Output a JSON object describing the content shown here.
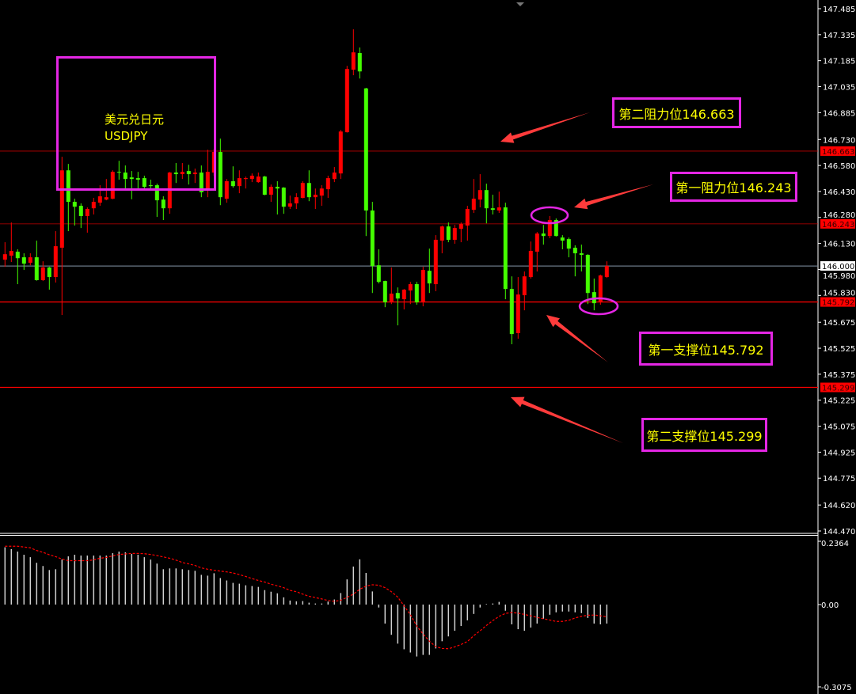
{
  "chart_data": [
    {
      "type": "candlestick",
      "title_lines": [
        "美元兑日元",
        "USDJPY"
      ],
      "ylim": [
        144.47,
        147.485
      ],
      "y_ticks": [
        "147.485",
        "147.335",
        "147.185",
        "147.035",
        "146.885",
        "146.730",
        "146.580",
        "146.430",
        "146.280",
        "146.130",
        "145.980",
        "145.830",
        "145.675",
        "145.525",
        "145.375",
        "145.225",
        "145.075",
        "144.925",
        "144.775",
        "144.620",
        "144.470"
      ],
      "up_color": "#ff0000",
      "down_color": "#44ff00",
      "candle_fields": [
        "open",
        "high",
        "low",
        "close"
      ],
      "candles": [
        [
          146.036,
          146.137,
          145.995,
          146.068
        ],
        [
          146.059,
          146.251,
          146.023,
          146.087
        ],
        [
          146.082,
          146.096,
          145.895,
          146.045
        ],
        [
          146.05,
          146.073,
          145.977,
          146.013
        ],
        [
          146.018,
          146.073,
          146.004,
          146.05
        ],
        [
          146.05,
          146.146,
          145.915,
          145.918
        ],
        [
          145.918,
          146.027,
          145.913,
          145.991
        ],
        [
          145.991,
          145.995,
          145.863,
          145.936
        ],
        [
          145.936,
          146.201,
          145.904,
          146.114
        ],
        [
          146.105,
          146.63,
          145.717,
          146.552
        ],
        [
          146.552,
          146.589,
          146.201,
          146.37
        ],
        [
          146.37,
          146.388,
          146.233,
          146.342
        ],
        [
          146.347,
          146.361,
          146.219,
          146.288
        ],
        [
          146.288,
          146.338,
          146.192,
          146.329
        ],
        [
          146.333,
          146.393,
          146.297,
          146.37
        ],
        [
          146.365,
          146.466,
          146.347,
          146.402
        ],
        [
          146.383,
          146.502,
          146.379,
          146.397
        ],
        [
          146.388,
          146.552,
          146.385,
          146.543
        ],
        [
          146.543,
          146.607,
          146.498,
          146.539
        ],
        [
          146.539,
          146.58,
          146.443,
          146.502
        ],
        [
          146.511,
          146.548,
          146.385,
          146.502
        ],
        [
          146.507,
          146.543,
          146.447,
          146.498
        ],
        [
          146.507,
          146.521,
          146.443,
          146.457
        ],
        [
          146.466,
          146.498,
          146.447,
          146.461
        ],
        [
          146.466,
          146.475,
          146.283,
          146.379
        ],
        [
          146.383,
          146.402,
          146.265,
          146.333
        ],
        [
          146.333,
          146.543,
          146.301,
          146.539
        ],
        [
          146.539,
          146.594,
          146.479,
          146.53
        ],
        [
          146.53,
          146.594,
          146.502,
          146.543
        ],
        [
          146.548,
          146.584,
          146.47,
          146.53
        ],
        [
          146.53,
          146.562,
          146.479,
          146.539
        ],
        [
          146.539,
          146.58,
          146.397,
          146.425
        ],
        [
          146.438,
          146.671,
          146.397,
          146.543
        ],
        [
          146.539,
          146.676,
          146.521,
          146.658
        ],
        [
          146.658,
          146.735,
          146.351,
          146.397
        ],
        [
          146.388,
          146.502,
          146.365,
          146.489
        ],
        [
          146.489,
          146.575,
          146.452,
          146.461
        ],
        [
          146.461,
          146.552,
          146.42,
          146.507
        ],
        [
          146.502,
          146.516,
          146.447,
          146.507
        ],
        [
          146.502,
          146.534,
          146.484,
          146.521
        ],
        [
          146.484,
          146.539,
          146.48,
          146.516
        ],
        [
          146.516,
          146.52,
          146.408,
          146.411
        ],
        [
          146.411,
          146.47,
          146.37,
          146.457
        ],
        [
          146.457,
          146.489,
          146.297,
          146.447
        ],
        [
          146.452,
          146.455,
          146.301,
          146.342
        ],
        [
          146.342,
          146.406,
          146.329,
          146.361
        ],
        [
          146.361,
          146.42,
          146.329,
          146.397
        ],
        [
          146.393,
          146.489,
          146.39,
          146.479
        ],
        [
          146.479,
          146.552,
          146.374,
          146.397
        ],
        [
          146.397,
          146.447,
          146.329,
          146.411
        ],
        [
          146.406,
          146.466,
          146.347,
          146.447
        ],
        [
          146.443,
          146.521,
          146.393,
          146.507
        ],
        [
          146.502,
          146.571,
          146.484,
          146.539
        ],
        [
          146.534,
          146.785,
          146.502,
          146.776
        ],
        [
          146.772,
          147.155,
          146.77,
          147.137
        ],
        [
          147.133,
          147.366,
          147.101,
          147.233
        ],
        [
          147.229,
          147.261,
          147.082,
          147.123
        ],
        [
          147.025,
          147.028,
          146.173,
          146.32
        ],
        [
          146.32,
          146.37,
          145.844,
          146.0
        ],
        [
          146.004,
          146.096,
          145.899,
          145.908
        ],
        [
          145.913,
          145.915,
          145.762,
          145.79
        ],
        [
          145.79,
          145.991,
          145.78,
          145.84
        ],
        [
          145.844,
          145.876,
          145.657,
          145.812
        ],
        [
          145.808,
          145.867,
          145.749,
          145.863
        ],
        [
          145.858,
          145.908,
          145.78,
          145.895
        ],
        [
          145.895,
          145.908,
          145.776,
          145.79
        ],
        [
          145.79,
          145.995,
          145.767,
          145.977
        ],
        [
          145.972,
          146.1,
          145.844,
          145.899
        ],
        [
          145.895,
          146.178,
          145.854,
          146.151
        ],
        [
          146.146,
          146.233,
          146.073,
          146.228
        ],
        [
          146.228,
          146.251,
          146.137,
          146.151
        ],
        [
          146.151,
          146.237,
          146.128,
          146.219
        ],
        [
          146.214,
          146.251,
          146.137,
          146.242
        ],
        [
          146.233,
          146.347,
          146.146,
          146.329
        ],
        [
          146.324,
          146.502,
          146.306,
          146.388
        ],
        [
          146.383,
          146.53,
          146.338,
          146.438
        ],
        [
          146.438,
          146.475,
          146.246,
          146.333
        ],
        [
          146.333,
          146.411,
          146.297,
          146.324
        ],
        [
          146.32,
          146.429,
          146.306,
          146.338
        ],
        [
          146.338,
          146.365,
          145.808,
          145.867
        ],
        [
          145.867,
          145.94,
          145.548,
          145.607
        ],
        [
          145.612,
          145.936,
          145.58,
          145.835
        ],
        [
          145.831,
          145.968,
          145.744,
          145.94
        ],
        [
          145.936,
          146.141,
          145.927,
          146.087
        ],
        [
          146.082,
          146.196,
          145.968,
          146.187
        ],
        [
          146.187,
          146.237,
          146.123,
          146.173
        ],
        [
          146.173,
          146.288,
          146.16,
          146.265
        ],
        [
          146.265,
          146.274,
          146.17,
          146.173
        ],
        [
          146.164,
          146.178,
          146.096,
          146.146
        ],
        [
          146.155,
          146.164,
          146.05,
          146.1
        ],
        [
          146.105,
          146.119,
          145.94,
          146.073
        ],
        [
          146.073,
          146.123,
          145.968,
          146.064
        ],
        [
          146.064,
          146.068,
          145.78,
          145.844
        ],
        [
          145.849,
          145.927,
          145.744,
          145.785
        ],
        [
          145.79,
          145.95,
          145.776,
          145.945
        ],
        [
          145.936,
          146.027,
          145.931,
          146.0
        ]
      ],
      "current_price": {
        "value": 146.0,
        "label": "146.000",
        "color": "#8899aa"
      },
      "levels": [
        {
          "value": 146.663,
          "label": "146.663",
          "annotation": "第二阻力位146.663",
          "color": "#ff0000"
        },
        {
          "value": 146.243,
          "label": "146.243",
          "annotation": "第一阻力位146.243",
          "color": "#ff0000"
        },
        {
          "value": 145.792,
          "label": "145.792",
          "annotation": "第一支撑位145.792",
          "color": "#ff0000"
        },
        {
          "value": 145.299,
          "label": "145.299",
          "annotation": "第二支撑位145.299",
          "color": "#ff0000"
        }
      ],
      "annotation_box_color": "#e426e4",
      "annotation_text_color": "#ffff00",
      "arrow_color": "#ff3b3b"
    },
    {
      "type": "bar+line",
      "indicator": "MACD",
      "ylim": [
        -0.3075,
        0.2364
      ],
      "y_ticks": [
        "0.2364",
        "0.00",
        "-0.3075"
      ],
      "histogram_color": "#d0d0d0",
      "signal_color": "#ff0000",
      "histogram": [
        0.214,
        0.207,
        0.198,
        0.186,
        0.177,
        0.156,
        0.144,
        0.129,
        0.132,
        0.168,
        0.18,
        0.186,
        0.183,
        0.183,
        0.183,
        0.183,
        0.183,
        0.192,
        0.198,
        0.195,
        0.189,
        0.186,
        0.177,
        0.168,
        0.153,
        0.132,
        0.135,
        0.135,
        0.132,
        0.129,
        0.126,
        0.111,
        0.108,
        0.117,
        0.099,
        0.09,
        0.081,
        0.078,
        0.072,
        0.069,
        0.066,
        0.054,
        0.048,
        0.042,
        0.027,
        0.015,
        0.012,
        0.013,
        0.007,
        0.004,
        0.004,
        0.011,
        0.019,
        0.043,
        0.094,
        0.142,
        0.169,
        0.118,
        0.049,
        -0.011,
        -0.071,
        -0.113,
        -0.146,
        -0.167,
        -0.179,
        -0.194,
        -0.188,
        -0.188,
        -0.164,
        -0.137,
        -0.119,
        -0.098,
        -0.08,
        -0.059,
        -0.035,
        -0.011,
        0.002,
        0.004,
        0.01,
        -0.023,
        -0.074,
        -0.092,
        -0.098,
        -0.086,
        -0.071,
        -0.053,
        -0.038,
        -0.029,
        -0.026,
        -0.026,
        -0.029,
        -0.032,
        -0.05,
        -0.071,
        -0.074,
        -0.071
      ],
      "signal": [
        0.218,
        0.218,
        0.218,
        0.215,
        0.212,
        0.202,
        0.195,
        0.186,
        0.179,
        0.17,
        0.164,
        0.164,
        0.164,
        0.164,
        0.167,
        0.173,
        0.176,
        0.182,
        0.187,
        0.189,
        0.191,
        0.191,
        0.19,
        0.187,
        0.183,
        0.178,
        0.173,
        0.166,
        0.157,
        0.152,
        0.146,
        0.137,
        0.132,
        0.128,
        0.125,
        0.122,
        0.118,
        0.112,
        0.105,
        0.097,
        0.09,
        0.084,
        0.076,
        0.07,
        0.063,
        0.053,
        0.048,
        0.039,
        0.031,
        0.026,
        0.021,
        0.015,
        0.012,
        0.016,
        0.027,
        0.039,
        0.057,
        0.069,
        0.074,
        0.072,
        0.063,
        0.048,
        0.028,
        -0.005,
        -0.038,
        -0.08,
        -0.11,
        -0.137,
        -0.157,
        -0.164,
        -0.165,
        -0.158,
        -0.149,
        -0.138,
        -0.116,
        -0.098,
        -0.078,
        -0.06,
        -0.044,
        -0.033,
        -0.03,
        -0.032,
        -0.037,
        -0.042,
        -0.048,
        -0.053,
        -0.058,
        -0.063,
        -0.063,
        -0.059,
        -0.05,
        -0.044,
        -0.04,
        -0.039,
        -0.042,
        -0.046
      ]
    }
  ]
}
